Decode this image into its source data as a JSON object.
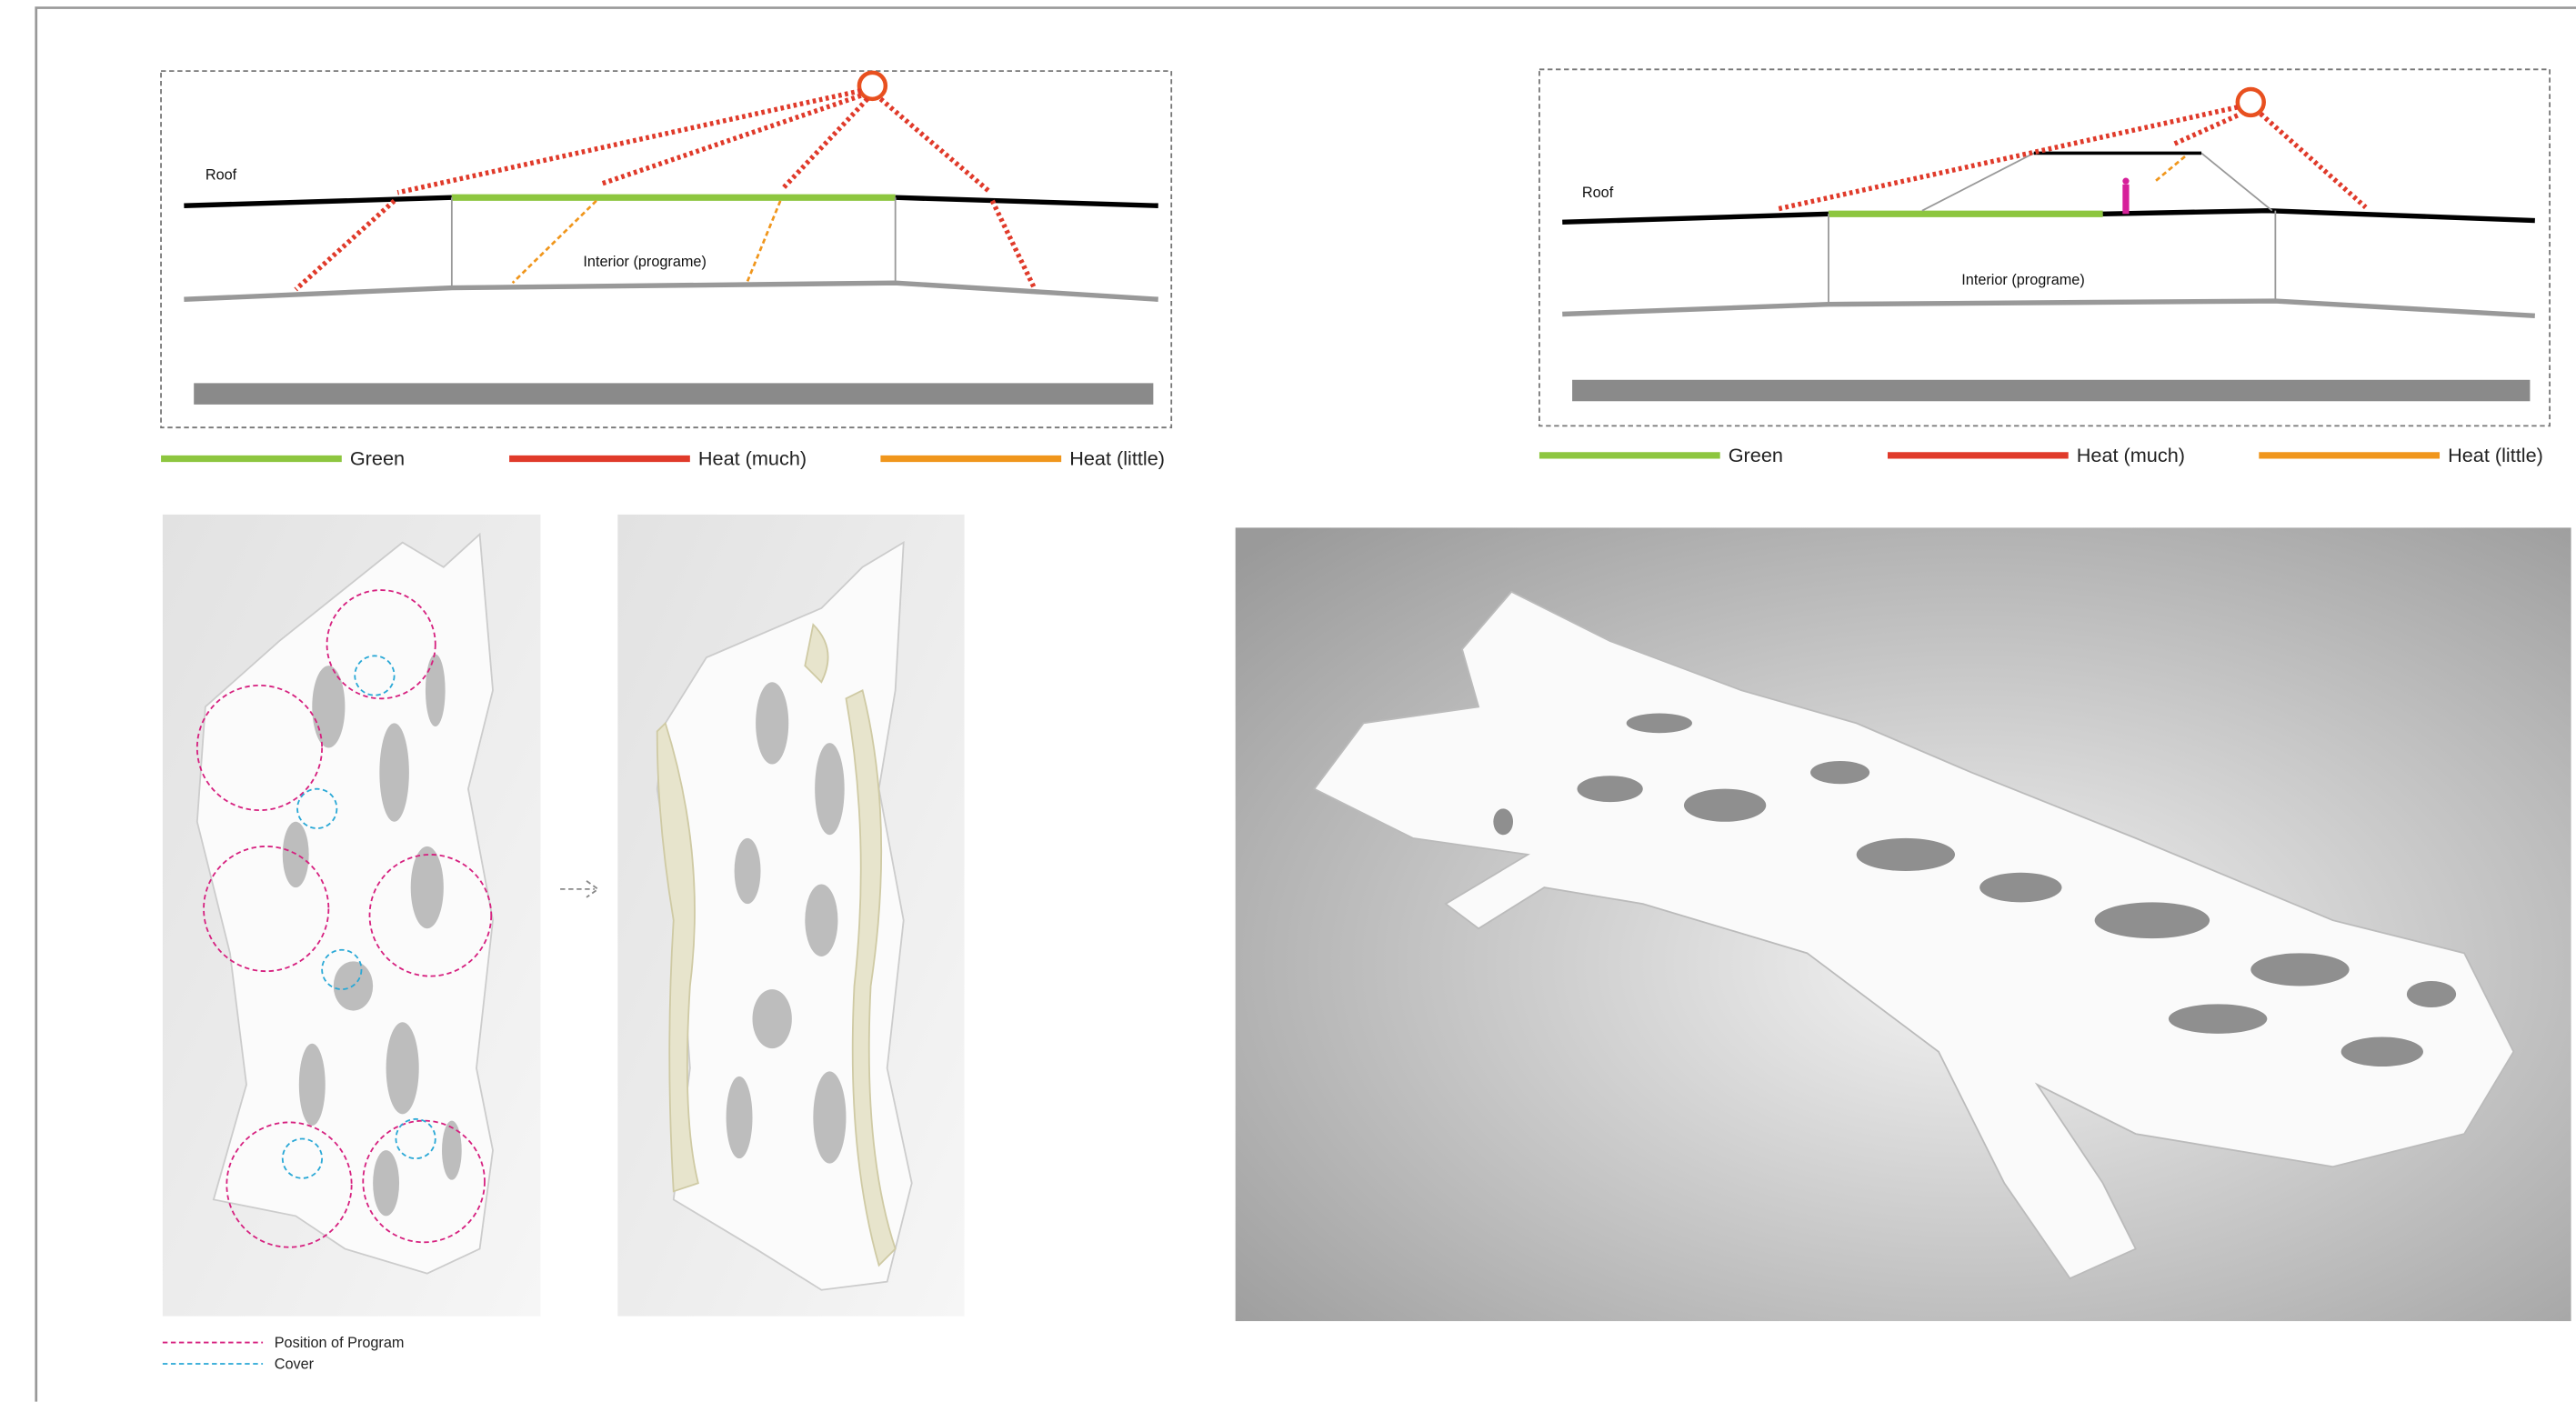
{
  "section_diagrams": [
    {
      "roof_label": "Roof",
      "interior_label": "Interior (programe)",
      "legend": [
        "Green",
        "Heat (much)",
        "Heat (little)"
      ]
    },
    {
      "roof_label": "Roof",
      "interior_label": "Interior (programe)",
      "legend": [
        "Green",
        "Heat (much)",
        "Heat (little)"
      ]
    }
  ],
  "plan_legend": [
    "Position of Program",
    "Cover"
  ]
}
